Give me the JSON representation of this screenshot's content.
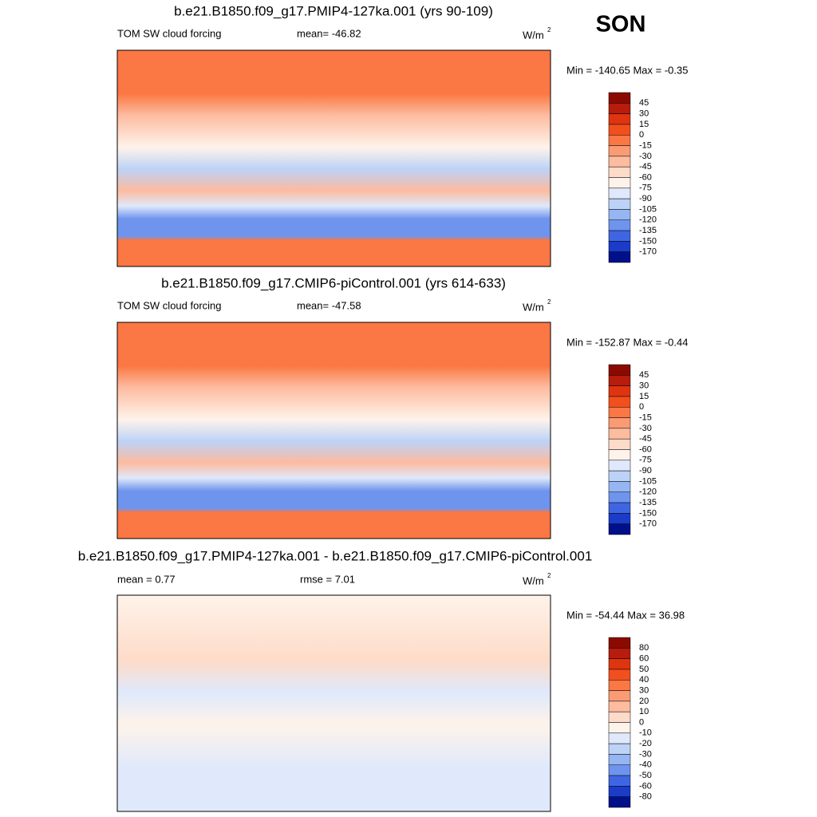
{
  "season": "SON",
  "panels": [
    {
      "title": "b.e21.B1850.f09_g17.PMIP4-127ka.001 (yrs 90-109)",
      "left_label": "TOM SW cloud forcing",
      "center_label": "mean= -46.82",
      "units": "W/m",
      "units_sup": "2",
      "minmax": "Min = -140.65 Max =  -0.35",
      "colorbar_labels": [
        "45",
        "30",
        "15",
        "0",
        "-15",
        "-30",
        "-45",
        "-60",
        "-75",
        "-90",
        "-105",
        "-120",
        "-135",
        "-150",
        "-170"
      ]
    },
    {
      "title": "b.e21.B1850.f09_g17.CMIP6-piControl.001 (yrs 614-633)",
      "left_label": "TOM SW cloud forcing",
      "center_label": "mean= -47.58",
      "units": "W/m",
      "units_sup": "2",
      "minmax": "Min = -152.87 Max =  -0.44",
      "colorbar_labels": [
        "45",
        "30",
        "15",
        "0",
        "-15",
        "-30",
        "-45",
        "-60",
        "-75",
        "-90",
        "-105",
        "-120",
        "-135",
        "-150",
        "-170"
      ]
    },
    {
      "title": "b.e21.B1850.f09_g17.PMIP4-127ka.001 - b.e21.B1850.f09_g17.CMIP6-piControl.001",
      "left_label": "mean =   0.77",
      "center_label": "rmse =   7.01",
      "units": "W/m",
      "units_sup": "2",
      "minmax": "Min = -54.44 Max =  36.98",
      "colorbar_labels": [
        "80",
        "60",
        "50",
        "40",
        "30",
        "20",
        "10",
        "0",
        "-10",
        "-20",
        "-30",
        "-40",
        "-50",
        "-60",
        "-80"
      ]
    }
  ],
  "colorbar_colors": [
    "#8b0a00",
    "#b71c0c",
    "#de3510",
    "#f24f1e",
    "#fb7743",
    "#fa9b74",
    "#fdbb9f",
    "#fedbc8",
    "#fef3ea",
    "#dfe9fb",
    "#bcd2f7",
    "#96b6f3",
    "#6e94ee",
    "#3f66e2",
    "#1a3cc8",
    "#00108a"
  ]
}
